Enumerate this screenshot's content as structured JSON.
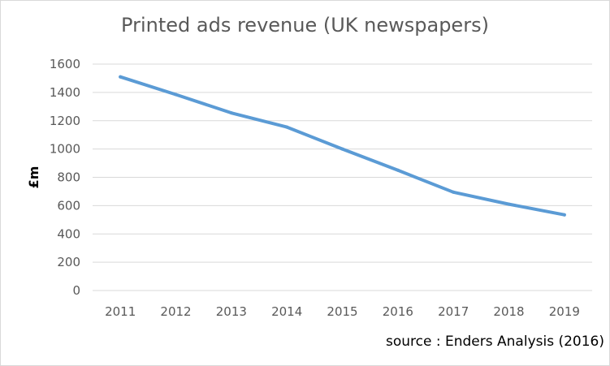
{
  "chart_data": {
    "type": "line",
    "title": "Printed ads revenue (UK newspapers)",
    "xlabel": "",
    "ylabel": "£m",
    "x": [
      "2011",
      "2012",
      "2013",
      "2014",
      "2015",
      "2016",
      "2017",
      "2018",
      "2019"
    ],
    "series": [
      {
        "values": [
          1510,
          1385,
          1255,
          1155,
          1000,
          850,
          695,
          610,
          535
        ]
      }
    ],
    "ylim": [
      0,
      1600
    ],
    "yticks": [
      0,
      200,
      400,
      600,
      800,
      1000,
      1200,
      1400,
      1600
    ],
    "grid": true,
    "legend": "none",
    "line_color": "#5b9bd5",
    "grid_color": "#d9d9d9"
  },
  "footer": {
    "source": "source : Enders Analysis (2016)"
  }
}
